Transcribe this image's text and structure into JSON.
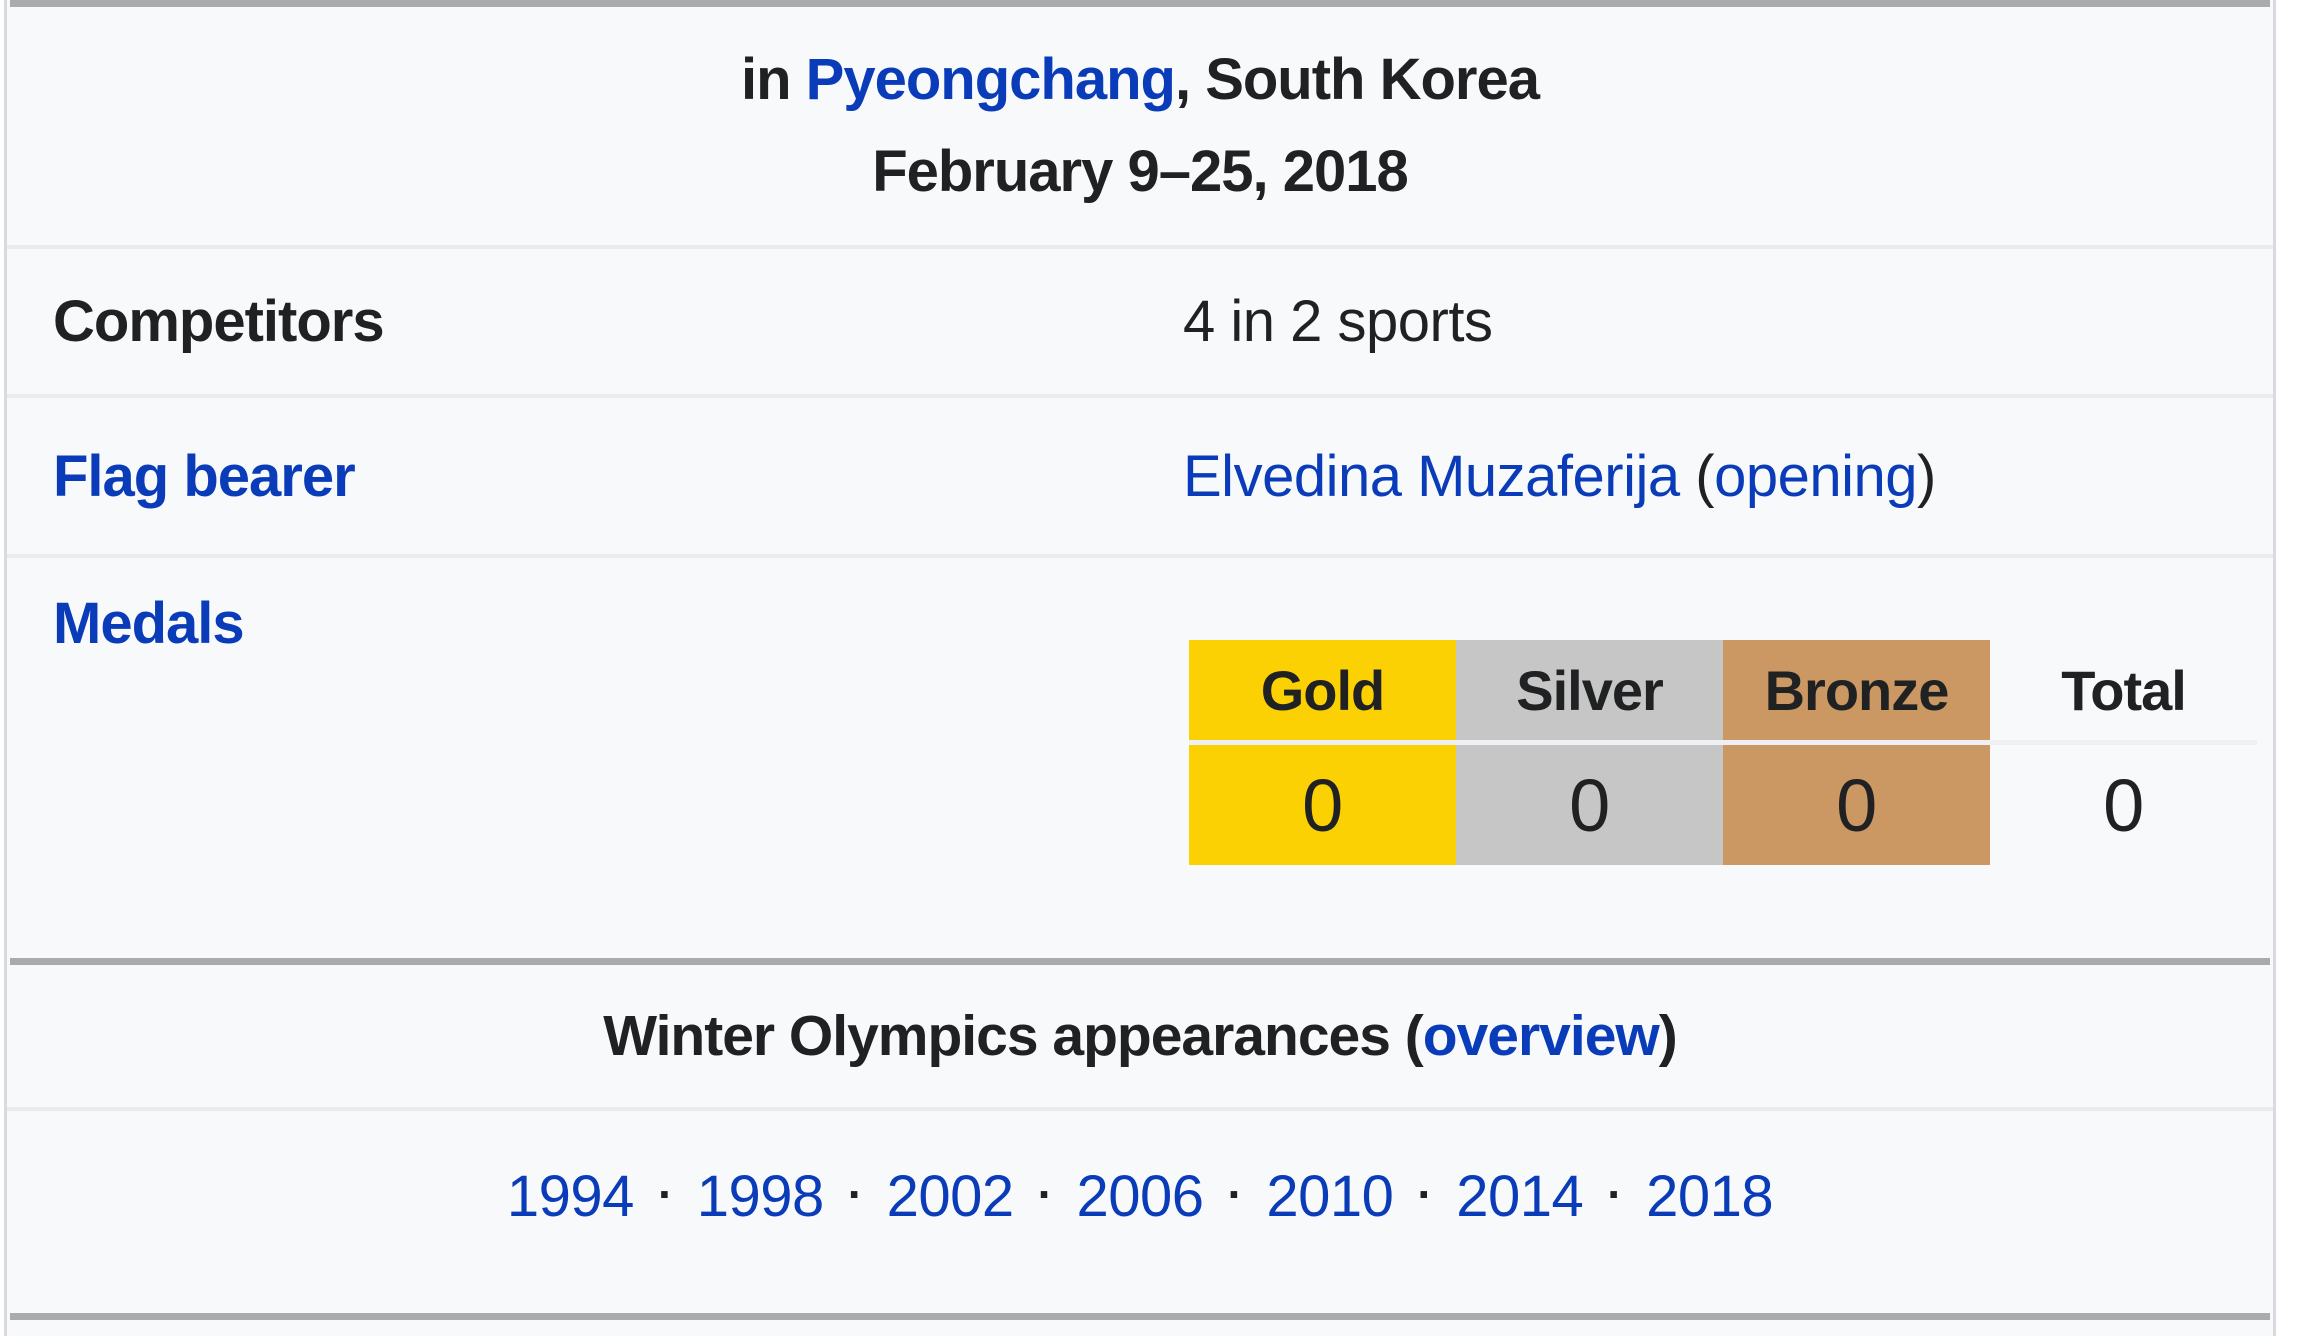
{
  "colors": {
    "page_background": "#ffffff",
    "infobox_background": "#f8f9fa",
    "infobox_border": "#d8dadf",
    "section_bar": "#aaabaf",
    "row_divider": "#e9ebee",
    "text": "#202122",
    "link": "#0a3cb9",
    "gold": "#fcd104",
    "silver": "#c6c6c6",
    "bronze": "#cb9762"
  },
  "header": {
    "location_prefix": "in ",
    "location_link": "Pyeongchang",
    "location_suffix": ", South Korea",
    "dates": "February 9–25, 2018"
  },
  "competitors": {
    "label": "Competitors",
    "value": "4 in 2 sports"
  },
  "flag_bearer": {
    "label": "Flag bearer",
    "name_link": "Elvedina Muzaferija",
    "paren_open": " (",
    "ceremony_link": "opening",
    "paren_close": ")"
  },
  "medals": {
    "label": "Medals",
    "columns": [
      {
        "name": "Gold",
        "value": "0",
        "color": "#fcd104"
      },
      {
        "name": "Silver",
        "value": "0",
        "color": "#c6c6c6"
      },
      {
        "name": "Bronze",
        "value": "0",
        "color": "#cb9762"
      },
      {
        "name": "Total",
        "value": "0",
        "color": "none"
      }
    ]
  },
  "appearances": {
    "title_prefix": "Winter Olympics appearances (",
    "overview_link": "overview",
    "title_suffix": ")",
    "separator": "·",
    "years": [
      "1994",
      "1998",
      "2002",
      "2006",
      "2010",
      "2014",
      "2018"
    ]
  }
}
